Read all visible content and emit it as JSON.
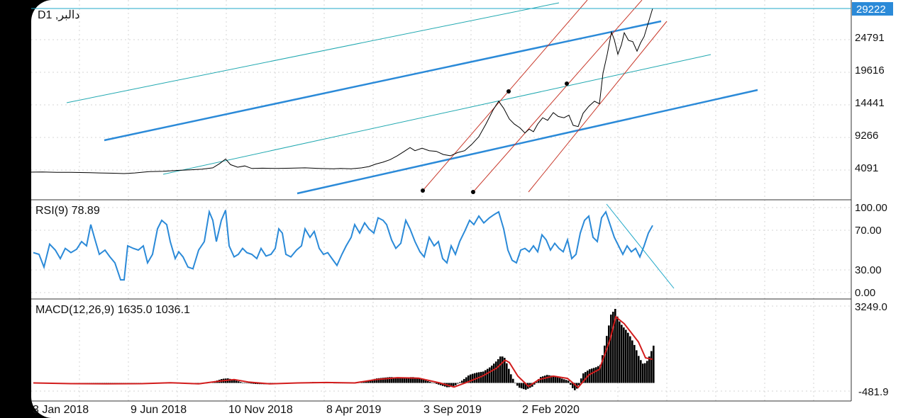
{
  "symbol_label": "D1 ,دالبر",
  "colors": {
    "price_line": "#000000",
    "channel_blue": "#2b8ad8",
    "channel_teal": "#20a8b0",
    "channel_red": "#c8392b",
    "rsi_line": "#2b8ad8",
    "macd_hist": "#000000",
    "macd_signal": "#d21c1c",
    "current_price_box": "#2b8ad8"
  },
  "price_panel": {
    "y_ticks": [
      "29222",
      "24791",
      "19616",
      "14441",
      "9266",
      "4091"
    ],
    "current_price": "29222"
  },
  "rsi_panel": {
    "title": "RSI(9) 78.89",
    "y_ticks": [
      "100.00",
      "70.00",
      "30.00",
      "0.00"
    ]
  },
  "macd_panel": {
    "title": "MACD(12,26,9) 1635.0 1036.1",
    "y_ticks": [
      "3249.0",
      "-481.9"
    ]
  },
  "x_ticks": [
    "3 Jan 2018",
    "9 Jun 2018",
    "10 Nov 2018",
    "8 Apr 2019",
    "3 Sep 2019",
    "2 Feb 2020"
  ],
  "chart_data": {
    "type": "line",
    "price": {
      "x_range": [
        "3 Jan 2018",
        "Aug 2020"
      ],
      "ylim": [
        0,
        29222
      ],
      "points": [
        [
          0,
          3500
        ],
        [
          20,
          3450
        ],
        [
          40,
          3420
        ],
        [
          60,
          3450
        ],
        [
          80,
          3400
        ],
        [
          100,
          3400
        ],
        [
          120,
          3350
        ],
        [
          140,
          3300
        ],
        [
          160,
          3250
        ],
        [
          175,
          3200
        ],
        [
          190,
          3300
        ],
        [
          210,
          3500
        ],
        [
          230,
          3550
        ],
        [
          250,
          3700
        ],
        [
          270,
          3800
        ],
        [
          285,
          3900
        ],
        [
          300,
          4100
        ],
        [
          310,
          4800
        ],
        [
          318,
          5500
        ],
        [
          325,
          4600
        ],
        [
          335,
          4200
        ],
        [
          345,
          4400
        ],
        [
          355,
          4000
        ],
        [
          370,
          4050
        ],
        [
          390,
          4000
        ],
        [
          410,
          4050
        ],
        [
          430,
          4100
        ],
        [
          450,
          4000
        ],
        [
          470,
          3950
        ],
        [
          480,
          4000
        ],
        [
          495,
          3950
        ],
        [
          510,
          4100
        ],
        [
          520,
          4300
        ],
        [
          530,
          4700
        ],
        [
          540,
          5000
        ],
        [
          550,
          5400
        ],
        [
          560,
          6000
        ],
        [
          570,
          6700
        ],
        [
          578,
          7300
        ],
        [
          585,
          6800
        ],
        [
          595,
          7200
        ],
        [
          605,
          6800
        ],
        [
          615,
          6700
        ],
        [
          625,
          6200
        ],
        [
          635,
          6000
        ],
        [
          645,
          6500
        ],
        [
          655,
          6800
        ],
        [
          665,
          7800
        ],
        [
          675,
          9000
        ],
        [
          685,
          11000
        ],
        [
          695,
          13200
        ],
        [
          703,
          14600
        ],
        [
          710,
          13500
        ],
        [
          718,
          11800
        ],
        [
          725,
          11000
        ],
        [
          733,
          10400
        ],
        [
          740,
          9600
        ],
        [
          746,
          10200
        ],
        [
          752,
          9800
        ],
        [
          758,
          11000
        ],
        [
          765,
          12000
        ],
        [
          772,
          11600
        ],
        [
          780,
          12800
        ],
        [
          787,
          12200
        ],
        [
          795,
          12000
        ],
        [
          802,
          12400
        ],
        [
          808,
          10800
        ],
        [
          815,
          10600
        ],
        [
          822,
          12700
        ],
        [
          830,
          13800
        ],
        [
          838,
          14600
        ],
        [
          845,
          14200
        ],
        [
          850,
          19000
        ],
        [
          856,
          22000
        ],
        [
          862,
          25500
        ],
        [
          866,
          24300
        ],
        [
          871,
          22000
        ],
        [
          876,
          23500
        ],
        [
          880,
          25400
        ],
        [
          886,
          24200
        ],
        [
          892,
          24000
        ],
        [
          898,
          22500
        ],
        [
          903,
          23800
        ],
        [
          908,
          24800
        ],
        [
          914,
          27000
        ],
        [
          920,
          29222
        ]
      ]
    },
    "rsi": {
      "ylim": [
        0,
        100
      ],
      "current": 78.89,
      "points": [
        [
          47,
          47
        ],
        [
          55,
          45
        ],
        [
          62,
          30
        ],
        [
          70,
          57
        ],
        [
          78,
          50
        ],
        [
          85,
          40
        ],
        [
          92,
          52
        ],
        [
          100,
          47
        ],
        [
          108,
          51
        ],
        [
          115,
          60
        ],
        [
          122,
          55
        ],
        [
          128,
          80
        ],
        [
          133,
          65
        ],
        [
          140,
          45
        ],
        [
          148,
          50
        ],
        [
          155,
          42
        ],
        [
          162,
          35
        ],
        [
          170,
          15
        ],
        [
          175,
          15
        ],
        [
          180,
          55
        ],
        [
          188,
          52
        ],
        [
          195,
          50
        ],
        [
          202,
          55
        ],
        [
          208,
          35
        ],
        [
          215,
          45
        ],
        [
          222,
          75
        ],
        [
          228,
          85
        ],
        [
          235,
          80
        ],
        [
          240,
          60
        ],
        [
          247,
          40
        ],
        [
          252,
          48
        ],
        [
          258,
          42
        ],
        [
          265,
          30
        ],
        [
          272,
          28
        ],
        [
          280,
          50
        ],
        [
          288,
          60
        ],
        [
          295,
          95
        ],
        [
          300,
          85
        ],
        [
          305,
          60
        ],
        [
          312,
          85
        ],
        [
          318,
          97
        ],
        [
          323,
          55
        ],
        [
          330,
          42
        ],
        [
          336,
          45
        ],
        [
          342,
          52
        ],
        [
          348,
          47
        ],
        [
          355,
          45
        ],
        [
          362,
          40
        ],
        [
          368,
          52
        ],
        [
          375,
          43
        ],
        [
          382,
          45
        ],
        [
          388,
          52
        ],
        [
          393,
          75
        ],
        [
          398,
          70
        ],
        [
          403,
          45
        ],
        [
          410,
          42
        ],
        [
          418,
          50
        ],
        [
          425,
          55
        ],
        [
          430,
          75
        ],
        [
          437,
          65
        ],
        [
          443,
          72
        ],
        [
          450,
          52
        ],
        [
          456,
          45
        ],
        [
          462,
          47
        ],
        [
          468,
          40
        ],
        [
          475,
          32
        ],
        [
          482,
          45
        ],
        [
          488,
          55
        ],
        [
          495,
          65
        ],
        [
          500,
          80
        ],
        [
          507,
          70
        ],
        [
          514,
          82
        ],
        [
          520,
          75
        ],
        [
          527,
          70
        ],
        [
          533,
          88
        ],
        [
          540,
          85
        ],
        [
          545,
          80
        ],
        [
          552,
          62
        ],
        [
          558,
          52
        ],
        [
          565,
          58
        ],
        [
          572,
          85
        ],
        [
          578,
          75
        ],
        [
          585,
          60
        ],
        [
          592,
          48
        ],
        [
          598,
          42
        ],
        [
          605,
          65
        ],
        [
          612,
          55
        ],
        [
          618,
          60
        ],
        [
          624,
          40
        ],
        [
          630,
          35
        ],
        [
          636,
          55
        ],
        [
          642,
          45
        ],
        [
          648,
          60
        ],
        [
          655,
          72
        ],
        [
          662,
          85
        ],
        [
          668,
          80
        ],
        [
          675,
          90
        ],
        [
          682,
          82
        ],
        [
          690,
          88
        ],
        [
          697,
          92
        ],
        [
          703,
          95
        ],
        [
          710,
          75
        ],
        [
          716,
          50
        ],
        [
          722,
          38
        ],
        [
          728,
          35
        ],
        [
          734,
          50
        ],
        [
          740,
          52
        ],
        [
          746,
          48
        ],
        [
          752,
          55
        ],
        [
          758,
          48
        ],
        [
          764,
          68
        ],
        [
          770,
          62
        ],
        [
          776,
          50
        ],
        [
          782,
          58
        ],
        [
          788,
          52
        ],
        [
          794,
          48
        ],
        [
          800,
          62
        ],
        [
          806,
          40
        ],
        [
          812,
          45
        ],
        [
          818,
          70
        ],
        [
          824,
          85
        ],
        [
          830,
          90
        ],
        [
          836,
          65
        ],
        [
          842,
          60
        ],
        [
          848,
          88
        ],
        [
          854,
          95
        ],
        [
          860,
          80
        ],
        [
          866,
          65
        ],
        [
          872,
          55
        ],
        [
          878,
          45
        ],
        [
          884,
          55
        ],
        [
          890,
          48
        ],
        [
          896,
          52
        ],
        [
          902,
          42
        ],
        [
          908,
          55
        ],
        [
          914,
          70
        ],
        [
          920,
          79
        ]
      ]
    },
    "macd": {
      "ylim": [
        -481.9,
        3249.0
      ],
      "value": 1635.0,
      "signal": 1036.1,
      "histogram": [
        [
          47,
          -30
        ],
        [
          60,
          -20
        ],
        [
          80,
          -40
        ],
        [
          100,
          -20
        ],
        [
          120,
          -30
        ],
        [
          140,
          -50
        ],
        [
          160,
          -40
        ],
        [
          180,
          -60
        ],
        [
          200,
          -30
        ],
        [
          220,
          -20
        ],
        [
          240,
          10
        ],
        [
          260,
          -40
        ],
        [
          280,
          -60
        ],
        [
          300,
          60
        ],
        [
          312,
          180
        ],
        [
          320,
          200
        ],
        [
          330,
          120
        ],
        [
          340,
          20
        ],
        [
          350,
          -20
        ],
        [
          360,
          -50
        ],
        [
          380,
          -60
        ],
        [
          400,
          -30
        ],
        [
          420,
          0
        ],
        [
          440,
          40
        ],
        [
          460,
          20
        ],
        [
          480,
          -20
        ],
        [
          500,
          0
        ],
        [
          510,
          40
        ],
        [
          520,
          120
        ],
        [
          530,
          200
        ],
        [
          540,
          230
        ],
        [
          550,
          260
        ],
        [
          560,
          220
        ],
        [
          570,
          240
        ],
        [
          580,
          260
        ],
        [
          590,
          200
        ],
        [
          600,
          100
        ],
        [
          610,
          0
        ],
        [
          620,
          -100
        ],
        [
          630,
          -200
        ],
        [
          640,
          -120
        ],
        [
          650,
          100
        ],
        [
          660,
          350
        ],
        [
          670,
          450
        ],
        [
          680,
          500
        ],
        [
          690,
          700
        ],
        [
          700,
          1000
        ],
        [
          705,
          1200
        ],
        [
          710,
          1100
        ],
        [
          715,
          700
        ],
        [
          720,
          300
        ],
        [
          725,
          0
        ],
        [
          730,
          -200
        ],
        [
          740,
          -300
        ],
        [
          750,
          -150
        ],
        [
          760,
          250
        ],
        [
          770,
          350
        ],
        [
          780,
          300
        ],
        [
          790,
          200
        ],
        [
          800,
          100
        ],
        [
          805,
          -200
        ],
        [
          810,
          -350
        ],
        [
          815,
          -100
        ],
        [
          820,
          400
        ],
        [
          830,
          600
        ],
        [
          840,
          700
        ],
        [
          845,
          800
        ],
        [
          850,
          1500
        ],
        [
          855,
          2200
        ],
        [
          860,
          3000
        ],
        [
          866,
          3249
        ],
        [
          870,
          2800
        ],
        [
          876,
          2500
        ],
        [
          882,
          2300
        ],
        [
          888,
          2000
        ],
        [
          894,
          1600
        ],
        [
          900,
          1100
        ],
        [
          906,
          800
        ],
        [
          912,
          1000
        ],
        [
          917,
          1400
        ],
        [
          920,
          1635
        ]
      ],
      "signal_line": [
        [
          47,
          0
        ],
        [
          100,
          -30
        ],
        [
          150,
          -40
        ],
        [
          200,
          -30
        ],
        [
          240,
          10
        ],
        [
          280,
          -40
        ],
        [
          310,
          80
        ],
        [
          330,
          150
        ],
        [
          350,
          40
        ],
        [
          380,
          -40
        ],
        [
          420,
          0
        ],
        [
          460,
          20
        ],
        [
          500,
          0
        ],
        [
          530,
          150
        ],
        [
          560,
          230
        ],
        [
          590,
          210
        ],
        [
          620,
          0
        ],
        [
          640,
          -180
        ],
        [
          660,
          50
        ],
        [
          680,
          300
        ],
        [
          700,
          650
        ],
        [
          712,
          1000
        ],
        [
          718,
          900
        ],
        [
          730,
          300
        ],
        [
          745,
          -150
        ],
        [
          760,
          150
        ],
        [
          780,
          300
        ],
        [
          800,
          200
        ],
        [
          815,
          -200
        ],
        [
          830,
          350
        ],
        [
          845,
          600
        ],
        [
          860,
          1900
        ],
        [
          868,
          2900
        ],
        [
          880,
          2600
        ],
        [
          900,
          1800
        ],
        [
          910,
          1100
        ],
        [
          920,
          1036
        ]
      ]
    },
    "drawn_lines": {
      "blue_channel": [
        [
          [
            147,
            198
          ],
          [
            932,
            30
          ]
        ],
        [
          [
            419,
            273
          ],
          [
            1068,
            127
          ]
        ]
      ],
      "teal_channel": [
        [
          [
            94,
            145
          ],
          [
            788,
            4
          ]
        ],
        [
          [
            230,
            246
          ],
          [
            1002,
            77
          ]
        ]
      ],
      "red_channel": [
        [
          [
            596,
            269
          ],
          [
            828,
            0
          ]
        ],
        [
          [
            667,
            271
          ],
          [
            905,
            0
          ]
        ],
        [
          [
            745,
            271
          ],
          [
            940,
            30
          ]
        ]
      ],
      "rsi_trend": [
        [
          855,
          288
        ],
        [
          950,
          407
        ]
      ],
      "anchor_points": [
        [
          596,
          269
        ],
        [
          667,
          271
        ],
        [
          717,
          129
        ],
        [
          799,
          118
        ]
      ]
    }
  }
}
